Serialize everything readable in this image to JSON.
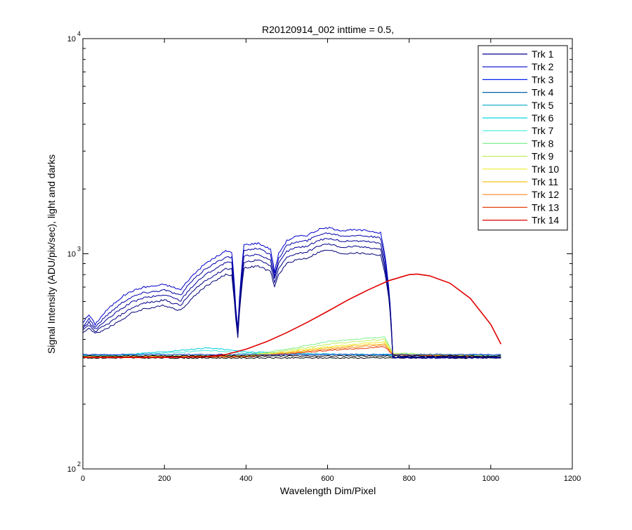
{
  "chart_data": {
    "type": "line",
    "title": "R20120914_002 inttime = 0.5,",
    "xlabel": "Wavelength Dim/Pixel",
    "ylabel": "Signal Intensity (ADU/pix/sec), light and darks",
    "xlim": [
      0,
      1200
    ],
    "ylim": [
      100,
      10000
    ],
    "yscale": "log",
    "x_ticks": [
      0,
      200,
      400,
      600,
      800,
      1000,
      1200
    ],
    "y_ticks": [
      {
        "base": "10",
        "exp": "2",
        "value": 100
      },
      {
        "base": "10",
        "exp": "3",
        "value": 1000
      },
      {
        "base": "10",
        "exp": "4",
        "value": 10000
      }
    ],
    "grid": false,
    "legend_position": "top-right",
    "series": [
      {
        "name": "Trk 1",
        "color": "#00008f"
      },
      {
        "name": "Trk 2",
        "color": "#0000cc"
      },
      {
        "name": "Trk 3",
        "color": "#0022ee"
      },
      {
        "name": "Trk 4",
        "color": "#0060a8"
      },
      {
        "name": "Trk 5",
        "color": "#00a8c8"
      },
      {
        "name": "Trk 6",
        "color": "#00d8e0"
      },
      {
        "name": "Trk 7",
        "color": "#40ecd8"
      },
      {
        "name": "Trk 8",
        "color": "#80f090"
      },
      {
        "name": "Trk 9",
        "color": "#c0ee60"
      },
      {
        "name": "Trk 10",
        "color": "#f0ec30"
      },
      {
        "name": "Trk 11",
        "color": "#f8c020"
      },
      {
        "name": "Trk 12",
        "color": "#f88820"
      },
      {
        "name": "Trk 13",
        "color": "#e84010"
      },
      {
        "name": "Trk 14",
        "color": "#e00000"
      }
    ],
    "spectrum_curves": [
      {
        "color": "#0000cc",
        "cutoff": 760,
        "points": [
          [
            0,
            480
          ],
          [
            15,
            520
          ],
          [
            30,
            470
          ],
          [
            60,
            550
          ],
          [
            100,
            640
          ],
          [
            120,
            670
          ],
          [
            150,
            700
          ],
          [
            180,
            710
          ],
          [
            200,
            720
          ],
          [
            220,
            700
          ],
          [
            240,
            680
          ],
          [
            260,
            760
          ],
          [
            300,
            900
          ],
          [
            340,
            1000
          ],
          [
            350,
            1030
          ],
          [
            365,
            1020
          ],
          [
            375,
            560
          ],
          [
            380,
            450
          ],
          [
            395,
            1100
          ],
          [
            430,
            1120
          ],
          [
            460,
            1050
          ],
          [
            470,
            820
          ],
          [
            480,
            1000
          ],
          [
            500,
            1150
          ],
          [
            520,
            1200
          ],
          [
            550,
            1220
          ],
          [
            580,
            1300
          ],
          [
            600,
            1320
          ],
          [
            620,
            1300
          ],
          [
            640,
            1280
          ],
          [
            660,
            1290
          ],
          [
            700,
            1280
          ],
          [
            730,
            1250
          ],
          [
            740,
            1000
          ],
          [
            750,
            700
          ],
          [
            760,
            330
          ],
          [
            1025,
            330
          ]
        ]
      },
      {
        "color": "#0000aa",
        "cutoff": 760,
        "points": [
          [
            0,
            460
          ],
          [
            15,
            500
          ],
          [
            30,
            455
          ],
          [
            60,
            520
          ],
          [
            100,
            600
          ],
          [
            120,
            630
          ],
          [
            150,
            660
          ],
          [
            180,
            670
          ],
          [
            200,
            680
          ],
          [
            220,
            660
          ],
          [
            240,
            640
          ],
          [
            260,
            720
          ],
          [
            300,
            850
          ],
          [
            340,
            940
          ],
          [
            350,
            970
          ],
          [
            365,
            960
          ],
          [
            375,
            540
          ],
          [
            380,
            440
          ],
          [
            395,
            1040
          ],
          [
            430,
            1060
          ],
          [
            460,
            990
          ],
          [
            470,
            790
          ],
          [
            480,
            950
          ],
          [
            500,
            1090
          ],
          [
            520,
            1130
          ],
          [
            550,
            1150
          ],
          [
            580,
            1230
          ],
          [
            600,
            1250
          ],
          [
            620,
            1230
          ],
          [
            640,
            1210
          ],
          [
            660,
            1220
          ],
          [
            700,
            1210
          ],
          [
            730,
            1180
          ],
          [
            740,
            950
          ],
          [
            750,
            680
          ],
          [
            760,
            330
          ],
          [
            1025,
            330
          ]
        ]
      },
      {
        "color": "#000099",
        "cutoff": 760,
        "points": [
          [
            0,
            450
          ],
          [
            15,
            480
          ],
          [
            30,
            445
          ],
          [
            60,
            495
          ],
          [
            100,
            565
          ],
          [
            120,
            595
          ],
          [
            150,
            625
          ],
          [
            180,
            635
          ],
          [
            200,
            645
          ],
          [
            220,
            625
          ],
          [
            240,
            605
          ],
          [
            260,
            680
          ],
          [
            300,
            800
          ],
          [
            340,
            885
          ],
          [
            350,
            910
          ],
          [
            365,
            905
          ],
          [
            375,
            525
          ],
          [
            380,
            430
          ],
          [
            395,
            975
          ],
          [
            430,
            995
          ],
          [
            460,
            935
          ],
          [
            470,
            760
          ],
          [
            480,
            900
          ],
          [
            500,
            1025
          ],
          [
            520,
            1065
          ],
          [
            550,
            1085
          ],
          [
            580,
            1160
          ],
          [
            600,
            1180
          ],
          [
            620,
            1160
          ],
          [
            640,
            1140
          ],
          [
            660,
            1150
          ],
          [
            700,
            1140
          ],
          [
            730,
            1115
          ],
          [
            740,
            900
          ],
          [
            750,
            660
          ],
          [
            760,
            330
          ],
          [
            1025,
            330
          ]
        ]
      },
      {
        "color": "#000088",
        "cutoff": 760,
        "points": [
          [
            0,
            440
          ],
          [
            15,
            465
          ],
          [
            30,
            435
          ],
          [
            60,
            470
          ],
          [
            100,
            530
          ],
          [
            120,
            560
          ],
          [
            150,
            590
          ],
          [
            180,
            600
          ],
          [
            200,
            610
          ],
          [
            220,
            590
          ],
          [
            240,
            575
          ],
          [
            260,
            640
          ],
          [
            300,
            750
          ],
          [
            340,
            830
          ],
          [
            350,
            855
          ],
          [
            365,
            850
          ],
          [
            375,
            510
          ],
          [
            380,
            420
          ],
          [
            395,
            915
          ],
          [
            430,
            935
          ],
          [
            460,
            880
          ],
          [
            470,
            730
          ],
          [
            480,
            850
          ],
          [
            500,
            960
          ],
          [
            520,
            1000
          ],
          [
            550,
            1020
          ],
          [
            580,
            1090
          ],
          [
            600,
            1110
          ],
          [
            620,
            1090
          ],
          [
            640,
            1070
          ],
          [
            660,
            1080
          ],
          [
            700,
            1070
          ],
          [
            730,
            1050
          ],
          [
            740,
            860
          ],
          [
            750,
            640
          ],
          [
            760,
            330
          ],
          [
            1025,
            330
          ]
        ]
      },
      {
        "color": "#000077",
        "cutoff": 760,
        "points": [
          [
            0,
            430
          ],
          [
            15,
            450
          ],
          [
            30,
            425
          ],
          [
            60,
            450
          ],
          [
            100,
            500
          ],
          [
            120,
            530
          ],
          [
            150,
            555
          ],
          [
            180,
            565
          ],
          [
            200,
            575
          ],
          [
            220,
            560
          ],
          [
            240,
            545
          ],
          [
            260,
            600
          ],
          [
            300,
            705
          ],
          [
            340,
            780
          ],
          [
            350,
            800
          ],
          [
            365,
            795
          ],
          [
            375,
            495
          ],
          [
            380,
            410
          ],
          [
            395,
            860
          ],
          [
            430,
            875
          ],
          [
            460,
            825
          ],
          [
            470,
            700
          ],
          [
            480,
            800
          ],
          [
            500,
            900
          ],
          [
            520,
            935
          ],
          [
            550,
            955
          ],
          [
            580,
            1020
          ],
          [
            600,
            1040
          ],
          [
            620,
            1020
          ],
          [
            640,
            1000
          ],
          [
            660,
            1010
          ],
          [
            700,
            1000
          ],
          [
            730,
            985
          ],
          [
            740,
            820
          ],
          [
            750,
            620
          ],
          [
            760,
            330
          ],
          [
            1025,
            330
          ]
        ]
      }
    ],
    "low_band": [
      {
        "color": "#00ccdd",
        "points": [
          [
            0,
            338
          ],
          [
            100,
            340
          ],
          [
            200,
            350
          ],
          [
            270,
            360
          ],
          [
            300,
            365
          ],
          [
            330,
            362
          ],
          [
            400,
            350
          ],
          [
            500,
            345
          ],
          [
            600,
            342
          ],
          [
            760,
            340
          ],
          [
            1025,
            338
          ]
        ]
      },
      {
        "color": "#40e8d8",
        "points": [
          [
            0,
            336
          ],
          [
            100,
            338
          ],
          [
            200,
            345
          ],
          [
            270,
            352
          ],
          [
            320,
            355
          ],
          [
            400,
            345
          ],
          [
            500,
            342
          ],
          [
            760,
            338
          ],
          [
            1025,
            336
          ]
        ]
      },
      {
        "color": "#80f090",
        "points": [
          [
            0,
            334
          ],
          [
            400,
            338
          ],
          [
            500,
            360
          ],
          [
            600,
            390
          ],
          [
            700,
            405
          ],
          [
            740,
            410
          ],
          [
            760,
            345
          ],
          [
            1025,
            334
          ]
        ]
      },
      {
        "color": "#c0ee60",
        "points": [
          [
            0,
            333
          ],
          [
            400,
            336
          ],
          [
            500,
            355
          ],
          [
            600,
            380
          ],
          [
            700,
            395
          ],
          [
            740,
            400
          ],
          [
            760,
            343
          ],
          [
            1025,
            333
          ]
        ]
      },
      {
        "color": "#f0ec30",
        "points": [
          [
            0,
            332
          ],
          [
            400,
            335
          ],
          [
            500,
            350
          ],
          [
            600,
            370
          ],
          [
            700,
            385
          ],
          [
            740,
            390
          ],
          [
            760,
            342
          ],
          [
            1025,
            332
          ]
        ]
      },
      {
        "color": "#f8c020",
        "points": [
          [
            0,
            331
          ],
          [
            400,
            334
          ],
          [
            500,
            348
          ],
          [
            600,
            365
          ],
          [
            700,
            378
          ],
          [
            740,
            382
          ],
          [
            760,
            341
          ],
          [
            1025,
            331
          ]
        ]
      },
      {
        "color": "#f88820",
        "points": [
          [
            0,
            330
          ],
          [
            400,
            333
          ],
          [
            500,
            345
          ],
          [
            600,
            360
          ],
          [
            700,
            372
          ],
          [
            740,
            376
          ],
          [
            760,
            340
          ],
          [
            1025,
            330
          ]
        ]
      },
      {
        "color": "#e84010",
        "points": [
          [
            0,
            329
          ],
          [
            400,
            332
          ],
          [
            500,
            342
          ],
          [
            600,
            355
          ],
          [
            700,
            365
          ],
          [
            740,
            370
          ],
          [
            760,
            339
          ],
          [
            1025,
            329
          ]
        ]
      },
      {
        "color": "#1030cc",
        "points": [
          [
            0,
            340
          ],
          [
            1025,
            340
          ]
        ]
      },
      {
        "color": "#000000",
        "points": [
          [
            0,
            335
          ],
          [
            1025,
            335
          ]
        ]
      },
      {
        "color": "#000000",
        "points": [
          [
            0,
            328
          ],
          [
            1025,
            328
          ]
        ]
      }
    ],
    "peak_curve": {
      "color": "#e00000",
      "points": [
        [
          0,
          330
        ],
        [
          200,
          330
        ],
        [
          300,
          332
        ],
        [
          350,
          340
        ],
        [
          400,
          360
        ],
        [
          450,
          390
        ],
        [
          500,
          430
        ],
        [
          550,
          480
        ],
        [
          600,
          540
        ],
        [
          650,
          610
        ],
        [
          700,
          680
        ],
        [
          750,
          750
        ],
        [
          800,
          800
        ],
        [
          820,
          805
        ],
        [
          850,
          790
        ],
        [
          900,
          730
        ],
        [
          950,
          620
        ],
        [
          1000,
          470
        ],
        [
          1025,
          380
        ]
      ]
    }
  }
}
